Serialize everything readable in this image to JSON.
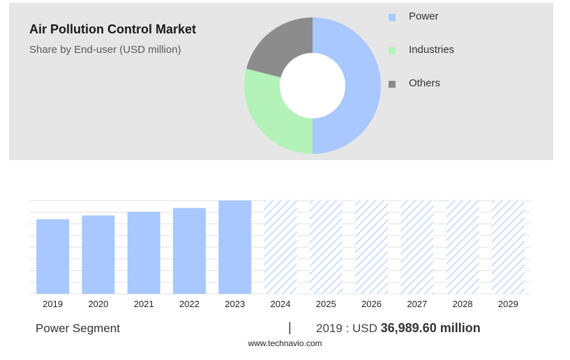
{
  "header": {
    "title": "Air Pollution Control Market",
    "subtitle": "Share by End-user (USD million)"
  },
  "chart_data": [
    {
      "type": "pie",
      "donut": true,
      "labels": [
        "Power",
        "Industries",
        "Others"
      ],
      "values": [
        50,
        29,
        21
      ],
      "colors": [
        "#a8c8ff",
        "#b3f2b8",
        "#8c8c8c"
      ],
      "legend_position": "right"
    },
    {
      "type": "bar",
      "categories": [
        "2019",
        "2020",
        "2021",
        "2022",
        "2023",
        "2024",
        "2025",
        "2026",
        "2027",
        "2028",
        "2029"
      ],
      "values": [
        80,
        84,
        88,
        92,
        100,
        100,
        100,
        100,
        100,
        100,
        100
      ],
      "forecast_from": "2024",
      "ylim": [
        0,
        100
      ],
      "grid": true,
      "colors": {
        "actual": "#a8c8ff",
        "forecast_hatch": "#a8c8ff"
      }
    }
  ],
  "footer": {
    "segment_label": "Power Segment",
    "separator": "|",
    "value_prefix": "2019 : USD",
    "value_bold": "36,989.60 million"
  },
  "source": "www.technavio.com"
}
